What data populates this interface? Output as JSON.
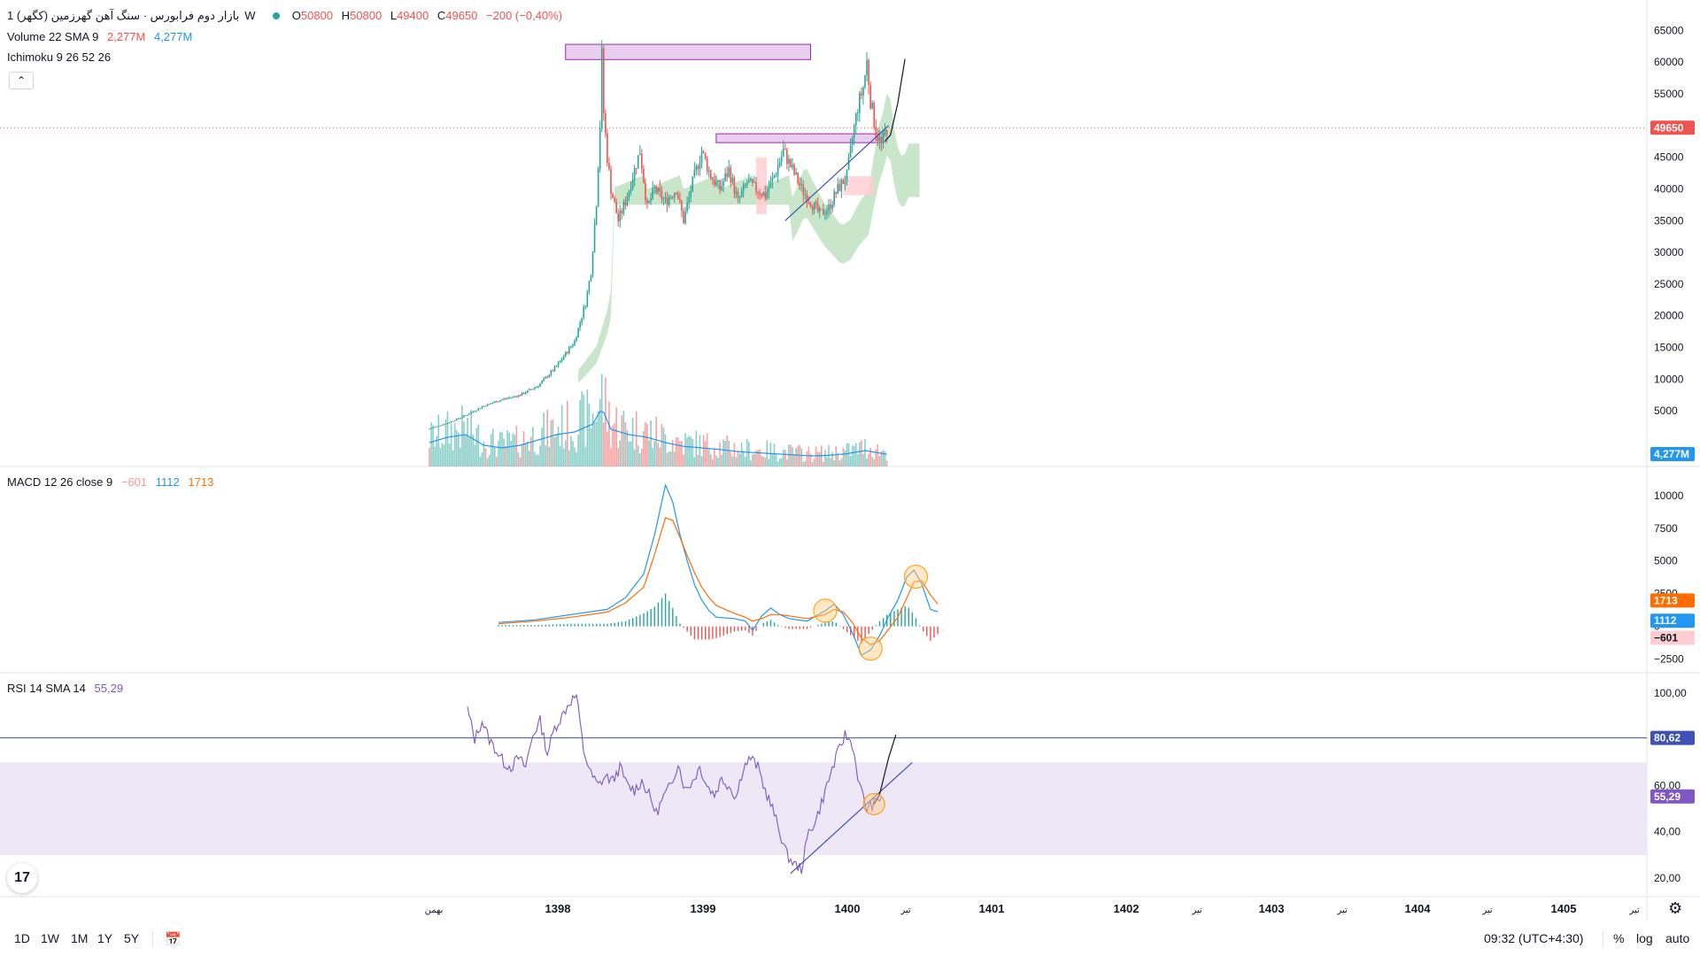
{
  "header": {
    "symbol": "بازار دوم فرابورس · سنگ آهن گهرزمین (كگهر)",
    "interval": "1W",
    "open_label": "O",
    "open": "50800",
    "high_label": "H",
    "high": "50800",
    "low_label": "L",
    "low": "49400",
    "close_label": "C",
    "close": "49650",
    "change": "−200 (−0,40%)"
  },
  "indicators": {
    "volume": {
      "label": "Volume 22 SMA 9",
      "value1": "2,277M",
      "value2": "4,277M"
    },
    "ichimoku": {
      "label": "Ichimoku 9 26 52 26"
    },
    "macd": {
      "label": "MACD 12 26 close 9",
      "hist": "−601",
      "macd": "1112",
      "signal": "1713"
    },
    "rsi": {
      "label": "RSI 14 SMA 14",
      "value": "55,29"
    }
  },
  "price_axis": {
    "ticks": [
      "65000",
      "60000",
      "55000",
      "50000",
      "45000",
      "40000",
      "35000",
      "30000",
      "25000",
      "20000",
      "15000",
      "10000",
      "5000"
    ],
    "last_price": "49650",
    "volume_sma": "4,277M"
  },
  "macd_axis": {
    "ticks": [
      "10000",
      "7500",
      "5000",
      "2500",
      "0",
      "−2500"
    ],
    "signal_tag": "1713",
    "macd_tag": "1112",
    "hist_tag": "−601"
  },
  "rsi_axis": {
    "ticks": [
      "100,00",
      "60,00",
      "40,00",
      "20,00"
    ],
    "level_tag": "80,62",
    "value_tag": "55,29"
  },
  "time_axis": {
    "labels": [
      "بهمن",
      "1398",
      "1399",
      "1400",
      "تیر",
      "1401",
      "1402",
      "تیر",
      "1403",
      "تیر",
      "1404",
      "تیر",
      "1405",
      "تیر"
    ]
  },
  "bottom_bar": {
    "ranges": [
      "1D",
      "1W",
      "1M",
      "1Y",
      "5Y"
    ],
    "clock": "09:32 (UTC+4:30)",
    "percent": "%",
    "log": "log",
    "auto": "auto"
  },
  "colors": {
    "up": "#26a69a",
    "down": "#ef5350",
    "macd": "#2196f3",
    "signal": "#ff6d00",
    "rsi": "#7e57c2",
    "rsi_band": "#ede7f6",
    "zone": "#e1bee7",
    "zone_border": "#9c27b0",
    "cloud_green": "#a5d6a7",
    "cloud_red": "#ffcdd2",
    "trend": "#3f51b5"
  },
  "chart_data": [
    {
      "type": "candlestick",
      "title": "",
      "ylim": [
        0,
        67000
      ],
      "x_labels": [
        "1398",
        "1399",
        "1400",
        "1401",
        "1402",
        "1403",
        "1404",
        "1405"
      ],
      "close_path": [
        [
          0,
          2200
        ],
        [
          10,
          3100
        ],
        [
          20,
          4300
        ],
        [
          30,
          5800
        ],
        [
          40,
          6800
        ],
        [
          50,
          7500
        ],
        [
          60,
          9000
        ],
        [
          70,
          12000
        ],
        [
          80,
          16000
        ],
        [
          86,
          22000
        ],
        [
          89,
          27000
        ],
        [
          92,
          38000
        ],
        [
          94,
          50000
        ],
        [
          95,
          61000
        ],
        [
          96,
          52000
        ],
        [
          98,
          45000
        ],
        [
          100,
          40000
        ],
        [
          104,
          35000
        ],
        [
          108,
          38000
        ],
        [
          112,
          42000
        ],
        [
          116,
          46000
        ],
        [
          120,
          37000
        ],
        [
          124,
          40000
        ],
        [
          130,
          38000
        ],
        [
          136,
          40000
        ],
        [
          140,
          35000
        ],
        [
          145,
          41000
        ],
        [
          150,
          46000
        ],
        [
          155,
          42000
        ],
        [
          160,
          40000
        ],
        [
          165,
          43000
        ],
        [
          170,
          38000
        ],
        [
          175,
          41000
        ],
        [
          180,
          40000
        ],
        [
          185,
          39000
        ],
        [
          190,
          42000
        ],
        [
          195,
          46000
        ],
        [
          200,
          43000
        ],
        [
          205,
          40000
        ],
        [
          210,
          38000
        ],
        [
          215,
          36000
        ],
        [
          220,
          37000
        ],
        [
          225,
          40000
        ],
        [
          230,
          42000
        ],
        [
          233,
          48000
        ],
        [
          236,
          53000
        ],
        [
          239,
          56000
        ],
        [
          241,
          60000
        ],
        [
          243,
          54000
        ],
        [
          246,
          49000
        ],
        [
          249,
          47000
        ],
        [
          252,
          49650
        ]
      ],
      "volume_path": [
        [
          0,
          4.5
        ],
        [
          10,
          5.5
        ],
        [
          20,
          6.0
        ],
        [
          30,
          4.0
        ],
        [
          40,
          3.5
        ],
        [
          50,
          4.0
        ],
        [
          60,
          5.0
        ],
        [
          70,
          6.0
        ],
        [
          80,
          6.5
        ],
        [
          90,
          8.0
        ],
        [
          95,
          11.0
        ],
        [
          100,
          7.0
        ],
        [
          110,
          6.0
        ],
        [
          120,
          5.5
        ],
        [
          130,
          4.5
        ],
        [
          140,
          3.8
        ],
        [
          150,
          3.5
        ],
        [
          160,
          3.2
        ],
        [
          170,
          2.8
        ],
        [
          180,
          2.6
        ],
        [
          190,
          2.4
        ],
        [
          200,
          2.2
        ],
        [
          210,
          2.0
        ],
        [
          220,
          2.1
        ],
        [
          230,
          2.4
        ],
        [
          240,
          3.0
        ],
        [
          252,
          2.3
        ]
      ],
      "zones": [
        {
          "from_week": 75,
          "to_week": 210,
          "low": 60400,
          "high": 62800
        },
        {
          "from_week": 158,
          "to_week": 252,
          "low": 47300,
          "high": 48700
        }
      ],
      "trendline": {
        "from": [
          196,
          35000
        ],
        "to": [
          253,
          50000
        ]
      },
      "projection": [
        [
          251,
          47500
        ],
        [
          254,
          48500
        ],
        [
          258,
          53500
        ],
        [
          262,
          60500
        ]
      ]
    },
    {
      "type": "line",
      "title": "",
      "ylim": [
        -3000,
        11000
      ],
      "series": [
        {
          "name": "",
          "values": [
            [
              0,
              300
            ],
            [
              20,
              500
            ],
            [
              40,
              900
            ],
            [
              60,
              1300
            ],
            [
              70,
              2200
            ],
            [
              80,
              4000
            ],
            [
              86,
              7000
            ],
            [
              92,
              10800
            ],
            [
              96,
              9500
            ],
            [
              100,
              7000
            ],
            [
              104,
              5000
            ],
            [
              108,
              3200
            ],
            [
              112,
              2000
            ],
            [
              116,
              1200
            ],
            [
              120,
              700
            ],
            [
              130,
              600
            ],
            [
              136,
              400
            ],
            [
              140,
              -300
            ],
            [
              145,
              800
            ],
            [
              150,
              1400
            ],
            [
              155,
              900
            ],
            [
              160,
              600
            ],
            [
              170,
              400
            ],
            [
              180,
              1200
            ],
            [
              185,
              1700
            ],
            [
              190,
              900
            ],
            [
              195,
              -500
            ],
            [
              200,
              -2200
            ],
            [
              205,
              -1800
            ],
            [
              210,
              -700
            ],
            [
              215,
              800
            ],
            [
              220,
              2000
            ],
            [
              225,
              3800
            ],
            [
              229,
              4300
            ],
            [
              233,
              3300
            ],
            [
              238,
              1300
            ],
            [
              242,
              1112
            ]
          ]
        },
        {
          "name": "",
          "values": [
            [
              0,
              200
            ],
            [
              20,
              400
            ],
            [
              40,
              700
            ],
            [
              60,
              1100
            ],
            [
              70,
              1800
            ],
            [
              80,
              3000
            ],
            [
              86,
              5500
            ],
            [
              92,
              8300
            ],
            [
              96,
              8100
            ],
            [
              100,
              6800
            ],
            [
              104,
              5400
            ],
            [
              108,
              4100
            ],
            [
              112,
              3000
            ],
            [
              116,
              2200
            ],
            [
              120,
              1600
            ],
            [
              130,
              1000
            ],
            [
              136,
              700
            ],
            [
              140,
              400
            ],
            [
              145,
              600
            ],
            [
              150,
              900
            ],
            [
              155,
              900
            ],
            [
              160,
              800
            ],
            [
              170,
              600
            ],
            [
              180,
              900
            ],
            [
              185,
              1300
            ],
            [
              190,
              1100
            ],
            [
              195,
              300
            ],
            [
              200,
              -900
            ],
            [
              205,
              -1400
            ],
            [
              210,
              -1100
            ],
            [
              215,
              -200
            ],
            [
              220,
              700
            ],
            [
              225,
              2200
            ],
            [
              229,
              3400
            ],
            [
              233,
              3500
            ],
            [
              238,
              2400
            ],
            [
              242,
              1713
            ]
          ]
        },
        {
          "name": "",
          "values": [
            [
              0,
              100
            ],
            [
              20,
              100
            ],
            [
              40,
              200
            ],
            [
              60,
              200
            ],
            [
              70,
              400
            ],
            [
              80,
              1000
            ],
            [
              86,
              1500
            ],
            [
              92,
              2500
            ],
            [
              96,
              1400
            ],
            [
              100,
              200
            ],
            [
              104,
              -400
            ],
            [
              108,
              -1000
            ],
            [
              112,
              -1000
            ],
            [
              116,
              -1000
            ],
            [
              120,
              -900
            ],
            [
              130,
              -400
            ],
            [
              136,
              -300
            ],
            [
              140,
              -700
            ],
            [
              145,
              200
            ],
            [
              150,
              500
            ],
            [
              155,
              0
            ],
            [
              160,
              -200
            ],
            [
              170,
              -200
            ],
            [
              180,
              300
            ],
            [
              185,
              400
            ],
            [
              190,
              -200
            ],
            [
              195,
              -800
            ],
            [
              200,
              -1300
            ],
            [
              205,
              -400
            ],
            [
              210,
              400
            ],
            [
              215,
              1000
            ],
            [
              220,
              1300
            ],
            [
              225,
              1600
            ],
            [
              229,
              900
            ],
            [
              233,
              -200
            ],
            [
              238,
              -1100
            ],
            [
              242,
              -601
            ]
          ]
        }
      ]
    },
    {
      "type": "line",
      "title": "",
      "ylim": [
        15,
        105
      ],
      "levels": [
        80.62
      ],
      "band": [
        30,
        70
      ],
      "series": [
        {
          "name": "",
          "values": [
            [
              0,
              93
            ],
            [
              4,
              80
            ],
            [
              8,
              88
            ],
            [
              12,
              80
            ],
            [
              16,
              75
            ],
            [
              20,
              70
            ],
            [
              24,
              68
            ],
            [
              28,
              72
            ],
            [
              32,
              68
            ],
            [
              36,
              82
            ],
            [
              40,
              88
            ],
            [
              44,
              74
            ],
            [
              48,
              85
            ],
            [
              52,
              90
            ],
            [
              56,
              96
            ],
            [
              60,
              99
            ],
            [
              64,
              75
            ],
            [
              68,
              65
            ],
            [
              72,
              60
            ],
            [
              76,
              64
            ],
            [
              80,
              62
            ],
            [
              84,
              68
            ],
            [
              88,
              60
            ],
            [
              92,
              58
            ],
            [
              96,
              62
            ],
            [
              100,
              56
            ],
            [
              104,
              48
            ],
            [
              108,
              55
            ],
            [
              112,
              60
            ],
            [
              116,
              70
            ],
            [
              120,
              58
            ],
            [
              124,
              62
            ],
            [
              128,
              68
            ],
            [
              132,
              60
            ],
            [
              136,
              56
            ],
            [
              140,
              63
            ],
            [
              144,
              60
            ],
            [
              148,
              55
            ],
            [
              152,
              68
            ],
            [
              156,
              72
            ],
            [
              160,
              68
            ],
            [
              164,
              58
            ],
            [
              168,
              50
            ],
            [
              172,
              40
            ],
            [
              176,
              30
            ],
            [
              180,
              26
            ],
            [
              184,
              24
            ],
            [
              188,
              40
            ],
            [
              192,
              45
            ],
            [
              196,
              55
            ],
            [
              200,
              65
            ],
            [
              204,
              74
            ],
            [
              208,
              82
            ],
            [
              212,
              78
            ],
            [
              216,
              60
            ],
            [
              220,
              50
            ],
            [
              224,
              52
            ],
            [
              228,
              55.29
            ]
          ]
        }
      ],
      "trendline": {
        "from": [
          178,
          22
        ],
        "to": [
          245,
          70
        ]
      },
      "projection": [
        [
          224,
          52
        ],
        [
          227,
          56
        ],
        [
          232,
          72
        ],
        [
          236,
          82
        ]
      ]
    }
  ]
}
